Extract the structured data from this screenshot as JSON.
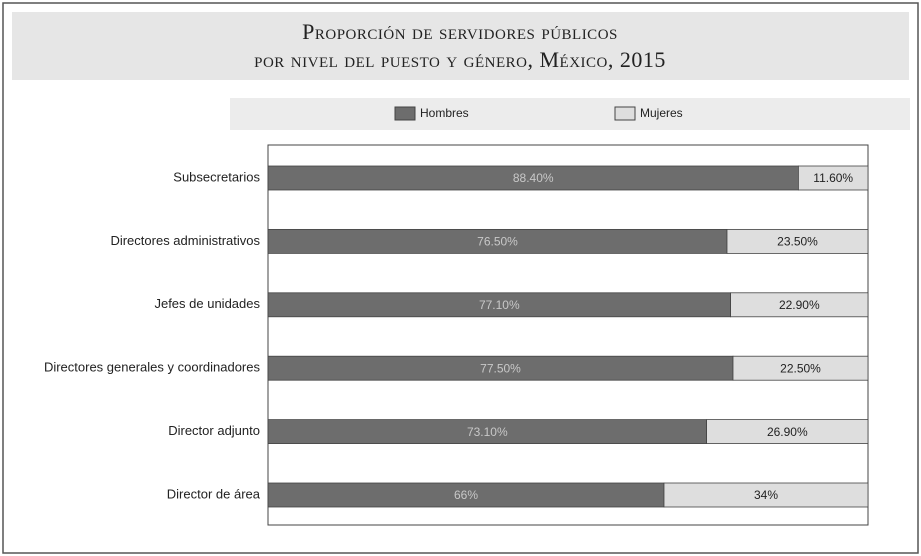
{
  "chart_data": {
    "type": "stacked-barh",
    "title": [
      "Proporción de servidores públicos",
      "por nivel del puesto y género, México, 2015"
    ],
    "categories": [
      "Subsecretarios",
      "Directores administrativos",
      "Jefes de unidades",
      "Directores generales y coordinadores",
      "Director adjunto",
      "Director de área"
    ],
    "series": [
      {
        "name": "Hombres",
        "color": "#6d6d6d",
        "values": [
          88.4,
          76.5,
          77.1,
          77.5,
          73.1,
          66
        ],
        "value_labels": [
          "88.40%",
          "76.50%",
          "77.10%",
          "77.50%",
          "73.10%",
          "66%"
        ]
      },
      {
        "name": "Mujeres",
        "color": "#dedede",
        "values": [
          11.6,
          23.5,
          22.9,
          22.5,
          26.9,
          34
        ],
        "value_labels": [
          "11.60%",
          "23.50%",
          "22.90%",
          "22.50%",
          "26.90%",
          "34%"
        ]
      }
    ],
    "xlim": [
      0,
      100
    ]
  }
}
